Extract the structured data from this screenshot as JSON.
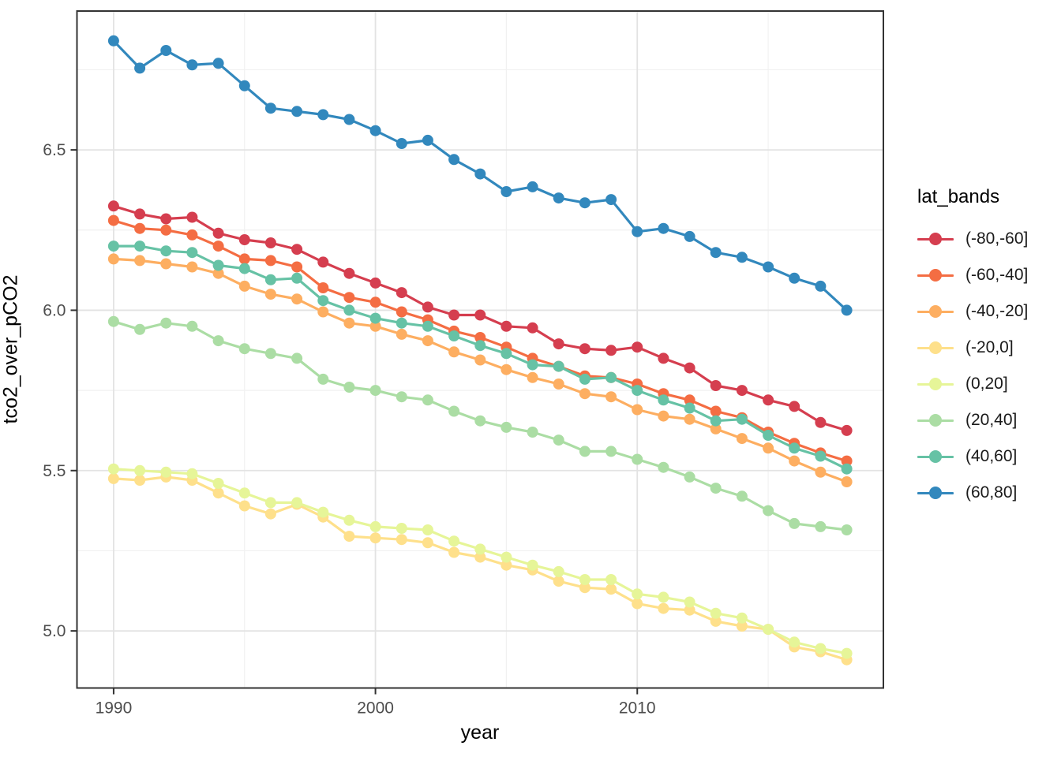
{
  "chart_data": {
    "type": "line",
    "title": "",
    "xlabel": "year",
    "ylabel": "tco2_over_pCO2",
    "legend": {
      "title": "lat_bands",
      "position": "right"
    },
    "grid": "major+minor",
    "xlim": [
      1988.6,
      2019.4
    ],
    "ylim": [
      4.822,
      6.933
    ],
    "x_ticks": [
      {
        "value": 1990,
        "label": "1990"
      },
      {
        "value": 2000,
        "label": "2000"
      },
      {
        "value": 2010,
        "label": "2010"
      }
    ],
    "x_minor_ticks": [
      1995,
      2005,
      2015
    ],
    "y_ticks": [
      {
        "value": 5.0,
        "label": "5.0"
      },
      {
        "value": 5.5,
        "label": "5.5"
      },
      {
        "value": 6.0,
        "label": "6.0"
      },
      {
        "value": 6.5,
        "label": "6.5"
      }
    ],
    "y_minor_ticks": [
      5.25,
      5.75,
      6.25,
      6.75
    ],
    "x": [
      1990,
      1991,
      1992,
      1993,
      1994,
      1995,
      1996,
      1997,
      1998,
      1999,
      2000,
      2001,
      2002,
      2003,
      2004,
      2005,
      2006,
      2007,
      2008,
      2009,
      2010,
      2011,
      2012,
      2013,
      2014,
      2015,
      2016,
      2017,
      2018
    ],
    "series": [
      {
        "name": "(-80,-60]",
        "color": "#d53e4f",
        "values": [
          6.325,
          6.3,
          6.285,
          6.29,
          6.24,
          6.22,
          6.21,
          6.19,
          6.15,
          6.115,
          6.085,
          6.055,
          6.01,
          5.985,
          5.985,
          5.95,
          5.945,
          5.895,
          5.88,
          5.875,
          5.885,
          5.85,
          5.82,
          5.765,
          5.75,
          5.72,
          5.7,
          5.65,
          5.625
        ]
      },
      {
        "name": "(-60,-40]",
        "color": "#f46d43",
        "values": [
          6.28,
          6.255,
          6.25,
          6.235,
          6.2,
          6.16,
          6.155,
          6.135,
          6.07,
          6.04,
          6.025,
          5.995,
          5.97,
          5.935,
          5.915,
          5.885,
          5.85,
          5.825,
          5.795,
          5.79,
          5.77,
          5.74,
          5.72,
          5.685,
          5.665,
          5.62,
          5.585,
          5.555,
          5.53
        ]
      },
      {
        "name": "(-40,-20]",
        "color": "#fdae61",
        "values": [
          6.16,
          6.155,
          6.145,
          6.135,
          6.115,
          6.075,
          6.05,
          6.035,
          5.995,
          5.96,
          5.95,
          5.925,
          5.905,
          5.87,
          5.845,
          5.815,
          5.79,
          5.77,
          5.74,
          5.73,
          5.69,
          5.67,
          5.66,
          5.63,
          5.6,
          5.57,
          5.53,
          5.495,
          5.465
        ]
      },
      {
        "name": "(-20,0]",
        "color": "#fee08b",
        "values": [
          5.475,
          5.47,
          5.48,
          5.47,
          5.43,
          5.39,
          5.365,
          5.395,
          5.355,
          5.295,
          5.29,
          5.285,
          5.275,
          5.245,
          5.23,
          5.205,
          5.19,
          5.155,
          5.135,
          5.13,
          5.085,
          5.07,
          5.065,
          5.03,
          5.015,
          5.005,
          4.95,
          4.935,
          4.91
        ]
      },
      {
        "name": "(0,20]",
        "color": "#e6f598",
        "values": [
          5.505,
          5.5,
          5.495,
          5.49,
          5.46,
          5.43,
          5.4,
          5.4,
          5.37,
          5.345,
          5.325,
          5.32,
          5.315,
          5.28,
          5.255,
          5.23,
          5.205,
          5.185,
          5.16,
          5.16,
          5.115,
          5.105,
          5.09,
          5.055,
          5.04,
          5.005,
          4.965,
          4.945,
          4.93
        ]
      },
      {
        "name": "(20,40]",
        "color": "#abdda4",
        "values": [
          5.965,
          5.94,
          5.96,
          5.95,
          5.905,
          5.88,
          5.865,
          5.85,
          5.785,
          5.76,
          5.75,
          5.73,
          5.72,
          5.685,
          5.655,
          5.635,
          5.62,
          5.595,
          5.56,
          5.56,
          5.535,
          5.51,
          5.48,
          5.445,
          5.42,
          5.375,
          5.335,
          5.325,
          5.315
        ]
      },
      {
        "name": "(40,60]",
        "color": "#66c2a5",
        "values": [
          6.2,
          6.2,
          6.185,
          6.18,
          6.14,
          6.13,
          6.095,
          6.1,
          6.03,
          6.0,
          5.975,
          5.96,
          5.95,
          5.92,
          5.89,
          5.865,
          5.83,
          5.825,
          5.785,
          5.79,
          5.75,
          5.72,
          5.695,
          5.655,
          5.66,
          5.61,
          5.57,
          5.545,
          5.505
        ]
      },
      {
        "name": "(60,80]",
        "color": "#3288bd",
        "values": [
          6.84,
          6.755,
          6.81,
          6.765,
          6.77,
          6.7,
          6.63,
          6.62,
          6.61,
          6.595,
          6.56,
          6.52,
          6.53,
          6.47,
          6.425,
          6.37,
          6.385,
          6.35,
          6.335,
          6.345,
          6.245,
          6.255,
          6.23,
          6.18,
          6.165,
          6.135,
          6.1,
          6.075,
          6.0
        ]
      }
    ],
    "style": {
      "panel_border_color": "#333333",
      "major_grid_color": "#e3e3e3",
      "minor_grid_color": "#f1f1f1",
      "tick_color": "#333333",
      "tick_label_color": "#4d4d4d",
      "line_width": 3.2,
      "point_radius": 7
    }
  }
}
